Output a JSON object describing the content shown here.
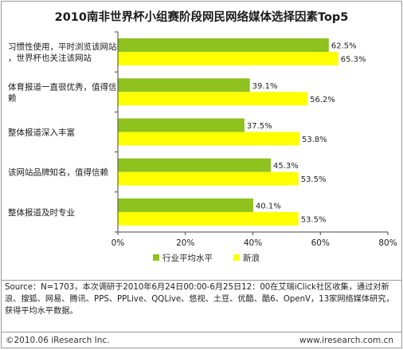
{
  "chart_data": {
    "type": "bar",
    "orientation": "horizontal",
    "title": "2010南非世界杯小组赛阶段网民网络媒体选择因素Top5",
    "categories": [
      "习惯性使用，平时浏览该网站，世界杯也关注该网站",
      "体育报道一直很优秀，值得信赖",
      "整体报道深入丰富",
      "该网站品牌知名，值得信赖",
      "整体报道及时专业"
    ],
    "series": [
      {
        "name": "行业平均水平",
        "color": "#8dc21f",
        "values": [
          62.5,
          39.1,
          37.5,
          45.3,
          40.1
        ],
        "labels": [
          "62.5%",
          "39.1%",
          "37.5%",
          "45.3%",
          "40.1%"
        ]
      },
      {
        "name": "新浪",
        "color": "#ffff00",
        "values": [
          65.3,
          56.2,
          53.8,
          53.5,
          53.5
        ],
        "labels": [
          "65.3%",
          "56.2%",
          "53.8%",
          "53.5%",
          "53.5%"
        ]
      }
    ],
    "xlim": [
      0,
      80
    ],
    "xticks": [
      "0%",
      "20%",
      "40%",
      "60%",
      "80%"
    ],
    "grid": false,
    "legend": "bottom"
  },
  "source_note": "Source：N=1703，本次调研于2010年6月24日00:00-6月25日12：00在艾瑞iClick社区收集，通过对新浪、搜狐、网易、腾讯、PPS、PPLive、QQLive、悠视、土豆、优酷、酷6、OpenV，13家网络媒体研究，获得平均水平数据。",
  "footer": {
    "copyright": "©2010.06 iResearch Inc.",
    "website": "www.iresearch.com.cn"
  }
}
